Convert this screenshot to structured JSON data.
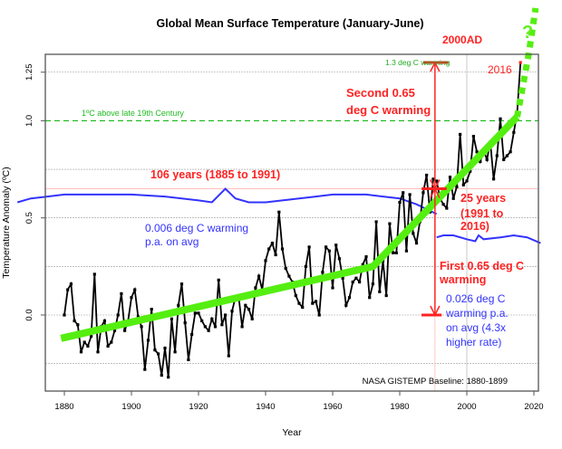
{
  "chart_data": {
    "type": "line",
    "title": "Global Mean Surface Temperature (January-June)",
    "xlabel": "Year",
    "ylabel": "Temperature Anomaly (ºC)",
    "xlim": [
      1866,
      2022
    ],
    "ylim": [
      -0.4,
      1.37
    ],
    "x_ticks": [
      "1880",
      "1900",
      "1920",
      "1940",
      "1960",
      "1980",
      "2000",
      "2020"
    ],
    "y_ticks": [
      "0.0",
      "0.5",
      "1.0",
      "1.25"
    ],
    "grid": true,
    "colors": {
      "observed": "#000000",
      "trend": "#55ee11",
      "annotation": "#ff2222",
      "rate": "#3333ff",
      "threshold": "#22bb22"
    },
    "series": [
      {
        "style": "black line with square markers",
        "x": [
          1880,
          1881,
          1882,
          1883,
          1884,
          1885,
          1886,
          1887,
          1888,
          1889,
          1890,
          1891,
          1892,
          1893,
          1894,
          1895,
          1896,
          1897,
          1898,
          1899,
          1900,
          1901,
          1902,
          1903,
          1904,
          1905,
          1906,
          1907,
          1908,
          1909,
          1910,
          1911,
          1912,
          1913,
          1914,
          1915,
          1916,
          1917,
          1918,
          1919,
          1920,
          1921,
          1922,
          1923,
          1924,
          1925,
          1926,
          1927,
          1928,
          1929,
          1930,
          1931,
          1932,
          1933,
          1934,
          1935,
          1936,
          1937,
          1938,
          1939,
          1940,
          1941,
          1942,
          1943,
          1944,
          1945,
          1946,
          1947,
          1948,
          1949,
          1950,
          1951,
          1952,
          1953,
          1954,
          1955,
          1956,
          1957,
          1958,
          1959,
          1960,
          1961,
          1962,
          1963,
          1964,
          1965,
          1966,
          1967,
          1968,
          1969,
          1970,
          1971,
          1972,
          1973,
          1974,
          1975,
          1976,
          1977,
          1978,
          1979,
          1980,
          1981,
          1982,
          1983,
          1984,
          1985,
          1986,
          1987,
          1988,
          1989,
          1990,
          1991,
          1992,
          1993,
          1994,
          1995,
          1996,
          1997,
          1998,
          1999,
          2000,
          2001,
          2002,
          2003,
          2004,
          2005,
          2006,
          2007,
          2008,
          2009,
          2010,
          2011,
          2012,
          2013,
          2014,
          2015,
          2016
        ],
        "y": [
          0.0,
          0.13,
          0.16,
          -0.03,
          -0.05,
          -0.19,
          -0.14,
          -0.16,
          -0.11,
          0.21,
          -0.19,
          -0.06,
          -0.03,
          -0.16,
          -0.14,
          -0.08,
          0.0,
          0.11,
          -0.08,
          -0.03,
          0.09,
          0.13,
          -0.01,
          -0.06,
          -0.28,
          -0.13,
          0.03,
          -0.18,
          -0.2,
          -0.31,
          -0.17,
          -0.32,
          -0.02,
          -0.19,
          0.05,
          0.16,
          -0.04,
          -0.23,
          -0.1,
          0.01,
          0.01,
          -0.03,
          -0.06,
          -0.08,
          -0.02,
          -0.06,
          0.18,
          -0.05,
          0.0,
          -0.21,
          0.02,
          0.09,
          0.09,
          -0.06,
          0.05,
          0.03,
          -0.02,
          0.14,
          0.2,
          0.13,
          0.28,
          0.34,
          0.37,
          0.31,
          0.53,
          0.34,
          0.24,
          0.2,
          0.17,
          0.1,
          0.06,
          0.04,
          0.25,
          0.35,
          0.06,
          0.07,
          0.0,
          0.22,
          0.35,
          0.33,
          0.14,
          0.36,
          0.29,
          0.19,
          0.05,
          0.09,
          0.17,
          0.19,
          0.17,
          0.26,
          0.3,
          0.09,
          0.16,
          0.48,
          0.12,
          0.28,
          0.1,
          0.47,
          0.32,
          0.32,
          0.58,
          0.63,
          0.33,
          0.62,
          0.42,
          0.37,
          0.48,
          0.63,
          0.72,
          0.53,
          0.7,
          0.69,
          0.6,
          0.57,
          0.55,
          0.71,
          0.6,
          0.66,
          0.93,
          0.67,
          0.69,
          0.74,
          0.92,
          0.84,
          0.79,
          0.85,
          0.8,
          0.89,
          0.7,
          0.82,
          1.01,
          0.8,
          0.82,
          0.84,
          0.94,
          1.04,
          1.3
        ]
      },
      {
        "style": "thick green piecewise trend",
        "x": [
          1879,
          1972,
          2015
        ],
        "y": [
          -0.12,
          0.25,
          1.02
        ]
      },
      {
        "style": "green dotted projection",
        "x": [
          2015,
          2018.5,
          2020.5
        ],
        "y": [
          1.02,
          1.35,
          1.58
        ]
      },
      {
        "style": "blue curve 1875-1991",
        "x": [
          1866,
          1870,
          1875,
          1880,
          1885,
          1890,
          1900,
          1910,
          1915,
          1920,
          1924,
          1928,
          1931,
          1935,
          1940,
          1945,
          1950,
          1955,
          1960,
          1965,
          1970,
          1975,
          1980,
          1985,
          1991
        ],
        "y": [
          0.58,
          0.6,
          0.61,
          0.62,
          0.62,
          0.62,
          0.62,
          0.61,
          0.6,
          0.59,
          0.58,
          0.65,
          0.6,
          0.58,
          0.58,
          0.59,
          0.6,
          0.61,
          0.62,
          0.62,
          0.62,
          0.61,
          0.6,
          0.57,
          0.52
        ]
      },
      {
        "style": "blue curve 1991-2022",
        "x": [
          1991,
          1993,
          1996,
          2000,
          2002.5,
          2003.5,
          2005,
          2010,
          2014,
          2018,
          2022
        ],
        "y": [
          0.4,
          0.41,
          0.41,
          0.39,
          0.38,
          0.41,
          0.39,
          0.4,
          0.41,
          0.4,
          0.37
        ]
      }
    ],
    "reference_lines": [
      {
        "y": 1.0,
        "style": "green dashed",
        "label": "1ºC above late 19th Century"
      },
      {
        "y": 0.65,
        "style": "pink thin"
      },
      {
        "y": 1.3,
        "label": "1.3 deg C warming"
      }
    ],
    "annotations": {
      "year_2000": "2000AD",
      "year_2016": "2016",
      "second_warming": [
        "Second 0.65",
        "deg C warming"
      ],
      "first_warming": [
        "First 0.65 deg C",
        "warming"
      ],
      "period_106": "106 years (1885 to 1991)",
      "period_25": [
        "25 years",
        "(1991 to",
        "2016)"
      ],
      "rate_early": [
        "0.006 deg C warming",
        "p.a. on avg"
      ],
      "rate_late": [
        "0.026 deg C",
        "warming p.a.",
        "on avg (4.3x",
        "higher rate)"
      ],
      "question": "?",
      "baseline": "NASA GISTEMP Baseline: 1880-1899"
    }
  }
}
